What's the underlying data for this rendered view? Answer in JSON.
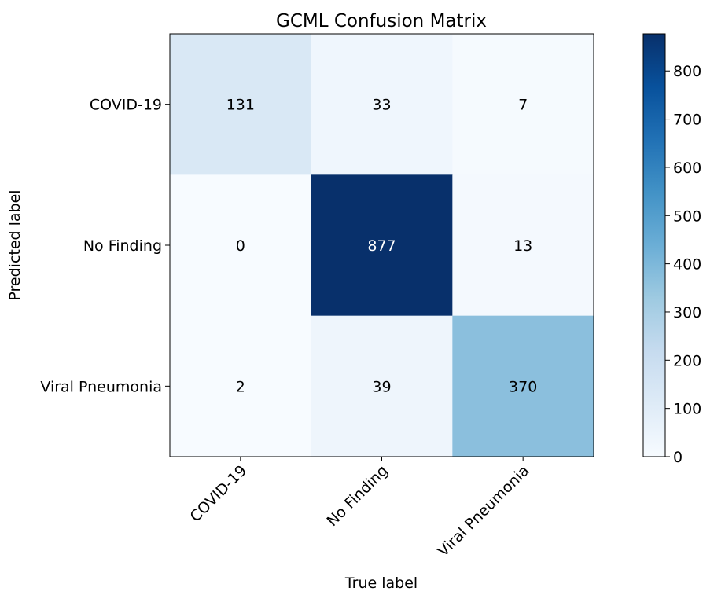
{
  "chart_data": {
    "type": "heatmap",
    "title": "GCML Confusion Matrix",
    "xlabel": "True label",
    "ylabel": "Predicted label",
    "x_categories": [
      "COVID-19",
      "No Finding",
      "Viral Pneumonia"
    ],
    "y_categories": [
      "COVID-19",
      "No Finding",
      "Viral Pneumonia"
    ],
    "matrix": [
      [
        131,
        33,
        7
      ],
      [
        0,
        877,
        13
      ],
      [
        2,
        39,
        370
      ]
    ],
    "colormap": "Blues",
    "color_range": [
      0,
      877
    ],
    "colorbar_ticks": [
      0,
      100,
      200,
      300,
      400,
      500,
      600,
      700,
      800
    ],
    "grid": false
  }
}
